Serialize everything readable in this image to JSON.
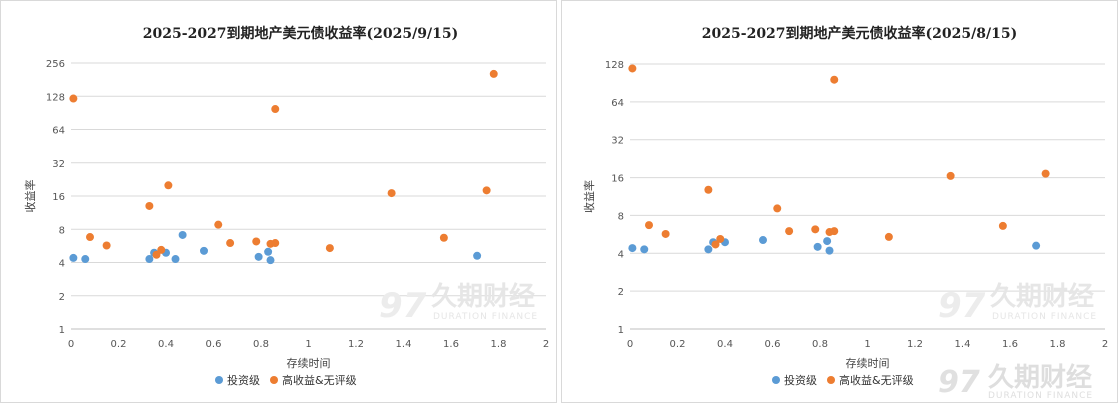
{
  "chart_data": [
    {
      "type": "scatter",
      "title": "2025-2027到期地产美元债收益率(2025/9/15)",
      "xlabel": "存续时间",
      "ylabel": "收益率",
      "y_scale": "log2",
      "xlim": [
        0,
        2
      ],
      "ylim": [
        1,
        256
      ],
      "x_ticks": [
        "0",
        "0.2",
        "0.4",
        "0.6",
        "0.8",
        "1",
        "1.2",
        "1.4",
        "1.6",
        "1.8",
        "2"
      ],
      "y_ticks": [
        "1",
        "2",
        "4",
        "8",
        "16",
        "32",
        "64",
        "128",
        "256"
      ],
      "legend_position": "bottom",
      "grid": true,
      "series": [
        {
          "name": "投资级",
          "color": "#5b9bd5",
          "points": [
            [
              0.01,
              4.4
            ],
            [
              0.06,
              4.3
            ],
            [
              0.33,
              4.3
            ],
            [
              0.35,
              4.9
            ],
            [
              0.4,
              4.9
            ],
            [
              0.44,
              4.3
            ],
            [
              0.47,
              7.1
            ],
            [
              0.56,
              5.1
            ],
            [
              0.79,
              4.5
            ],
            [
              0.83,
              5.0
            ],
            [
              0.84,
              4.2
            ],
            [
              1.71,
              4.6
            ]
          ]
        },
        {
          "name": "高收益&无评级",
          "color": "#ed7d31",
          "points": [
            [
              0.01,
              122
            ],
            [
              0.08,
              6.8
            ],
            [
              0.15,
              5.7
            ],
            [
              0.33,
              13
            ],
            [
              0.36,
              4.7
            ],
            [
              0.38,
              5.2
            ],
            [
              0.41,
              20
            ],
            [
              0.62,
              8.8
            ],
            [
              0.67,
              6.0
            ],
            [
              0.78,
              6.2
            ],
            [
              0.84,
              5.9
            ],
            [
              0.86,
              6.0
            ],
            [
              0.86,
              98
            ],
            [
              1.09,
              5.4
            ],
            [
              1.35,
              17
            ],
            [
              1.57,
              6.7
            ],
            [
              1.75,
              18
            ],
            [
              1.78,
              204
            ]
          ]
        }
      ]
    },
    {
      "type": "scatter",
      "title": "2025-2027到期地产美元债收益率(2025/8/15)",
      "xlabel": "存续时间",
      "ylabel": "收益率",
      "y_scale": "log2",
      "xlim": [
        0,
        2
      ],
      "ylim": [
        1,
        128
      ],
      "x_ticks": [
        "0",
        "0.2",
        "0.4",
        "0.6",
        "0.8",
        "1",
        "1.2",
        "1.4",
        "1.6",
        "1.8",
        "2"
      ],
      "y_ticks": [
        "1",
        "2",
        "4",
        "8",
        "16",
        "32",
        "64",
        "128"
      ],
      "legend_position": "bottom",
      "grid": true,
      "series": [
        {
          "name": "投资级",
          "color": "#5b9bd5",
          "points": [
            [
              0.01,
              4.4
            ],
            [
              0.06,
              4.3
            ],
            [
              0.33,
              4.3
            ],
            [
              0.35,
              4.9
            ],
            [
              0.4,
              4.9
            ],
            [
              0.56,
              5.1
            ],
            [
              0.79,
              4.5
            ],
            [
              0.83,
              5.0
            ],
            [
              0.84,
              4.2
            ],
            [
              1.71,
              4.6
            ]
          ]
        },
        {
          "name": "高收益&无评级",
          "color": "#ed7d31",
          "points": [
            [
              0.01,
              118
            ],
            [
              0.08,
              6.7
            ],
            [
              0.15,
              5.7
            ],
            [
              0.33,
              12.8
            ],
            [
              0.36,
              4.7
            ],
            [
              0.38,
              5.2
            ],
            [
              0.62,
              9.1
            ],
            [
              0.67,
              6.0
            ],
            [
              0.78,
              6.2
            ],
            [
              0.84,
              5.9
            ],
            [
              0.86,
              6.0
            ],
            [
              0.86,
              96
            ],
            [
              1.09,
              5.4
            ],
            [
              1.35,
              16.5
            ],
            [
              1.57,
              6.6
            ],
            [
              1.75,
              17.2
            ]
          ]
        }
      ]
    }
  ],
  "watermark": {
    "cn": "久期财经",
    "en": "DURATION FINANCE"
  }
}
